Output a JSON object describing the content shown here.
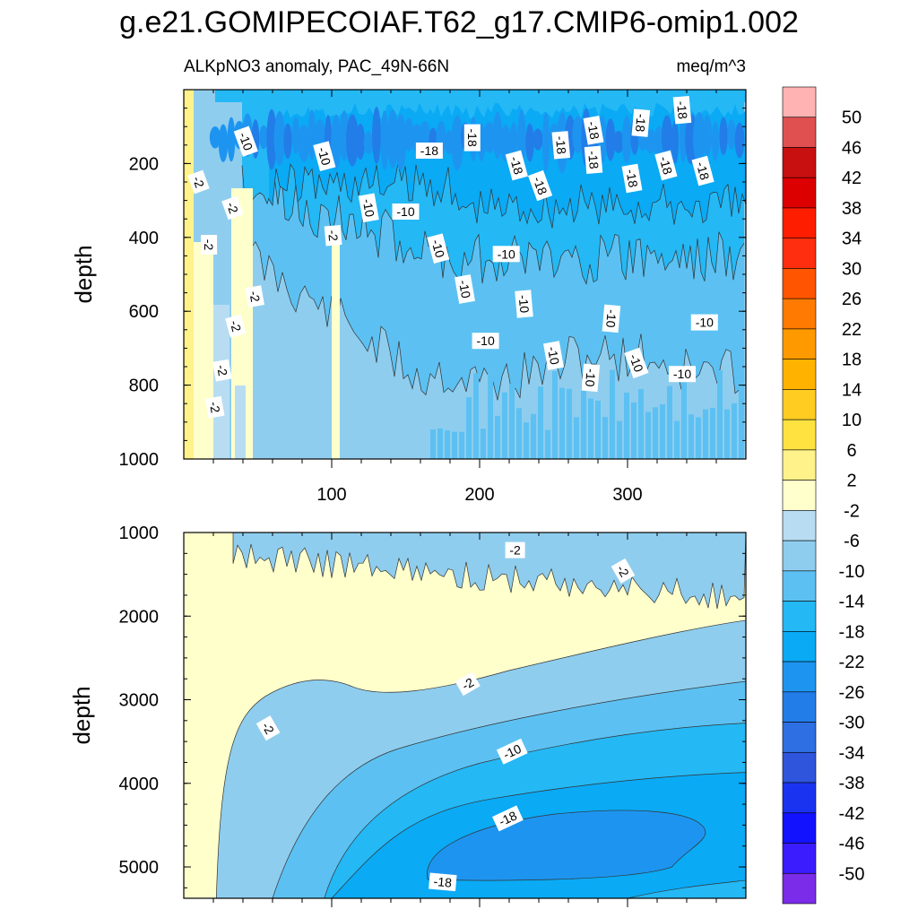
{
  "title": "g.e21.GOMIPECOIAF.T62_g17.CMIP6-omip1.002",
  "chart_data": {
    "type": "heatmap",
    "panels": [
      {
        "id": "upper",
        "left_label": "ALKpNO3 anomaly, PAC_49N-66N",
        "right_label": "meq/m^3",
        "ylabel": "depth",
        "y_range": [
          0,
          1000
        ],
        "y_ticks": [
          200,
          400,
          600,
          800,
          1000
        ],
        "x_range": [
          0,
          380
        ],
        "x_ticks": [
          100,
          200,
          300
        ],
        "contour_labels": [
          {
            "text": "-10",
            "x": 42,
            "y": 140,
            "rot": 70
          },
          {
            "text": "-10",
            "x": 95,
            "y": 180,
            "rot": 75
          },
          {
            "text": "-18",
            "x": 166,
            "y": 165,
            "rot": 0
          },
          {
            "text": "-18",
            "x": 195,
            "y": 130,
            "rot": 90
          },
          {
            "text": "-18",
            "x": 225,
            "y": 205,
            "rot": 75
          },
          {
            "text": "-18",
            "x": 255,
            "y": 150,
            "rot": 85
          },
          {
            "text": "-18",
            "x": 277,
            "y": 110,
            "rot": 80
          },
          {
            "text": "-18",
            "x": 309,
            "y": 90,
            "rot": 95
          },
          {
            "text": "-18",
            "x": 337,
            "y": 55,
            "rot": 85
          },
          {
            "text": "-18",
            "x": 277,
            "y": 190,
            "rot": 85
          },
          {
            "text": "-18",
            "x": 303,
            "y": 240,
            "rot": 80
          },
          {
            "text": "-18",
            "x": 326,
            "y": 205,
            "rot": 75
          },
          {
            "text": "-18",
            "x": 351,
            "y": 220,
            "rot": 75
          },
          {
            "text": "-18",
            "x": 241,
            "y": 260,
            "rot": 70
          },
          {
            "text": "-10",
            "x": 125,
            "y": 320,
            "rot": 80
          },
          {
            "text": "-10",
            "x": 150,
            "y": 330,
            "rot": 0
          },
          {
            "text": "-10",
            "x": 172,
            "y": 430,
            "rot": 75
          },
          {
            "text": "-10",
            "x": 218,
            "y": 445,
            "rot": 0
          },
          {
            "text": "-10",
            "x": 190,
            "y": 540,
            "rot": 80
          },
          {
            "text": "-10",
            "x": 230,
            "y": 580,
            "rot": 85
          },
          {
            "text": "-10",
            "x": 204,
            "y": 680,
            "rot": 0
          },
          {
            "text": "-10",
            "x": 250,
            "y": 720,
            "rot": 80
          },
          {
            "text": "-10",
            "x": 289,
            "y": 620,
            "rot": 95
          },
          {
            "text": "-10",
            "x": 275,
            "y": 780,
            "rot": 95
          },
          {
            "text": "-10",
            "x": 306,
            "y": 740,
            "rot": 70
          },
          {
            "text": "-10",
            "x": 337,
            "y": 770,
            "rot": 0
          },
          {
            "text": "-10",
            "x": 352,
            "y": 630,
            "rot": 0
          },
          {
            "text": "-2",
            "x": 10,
            "y": 250,
            "rot": 70
          },
          {
            "text": "-2",
            "x": 33,
            "y": 320,
            "rot": 70
          },
          {
            "text": "-2",
            "x": 17,
            "y": 420,
            "rot": 90
          },
          {
            "text": "-2",
            "x": 101,
            "y": 395,
            "rot": 85
          },
          {
            "text": "-2",
            "x": 48,
            "y": 560,
            "rot": 80
          },
          {
            "text": "-2",
            "x": 35,
            "y": 640,
            "rot": 75
          },
          {
            "text": "-2",
            "x": 26,
            "y": 760,
            "rot": 80
          },
          {
            "text": "-2",
            "x": 21,
            "y": 860,
            "rot": 80
          }
        ]
      },
      {
        "id": "lower",
        "ylabel": "depth",
        "y_range": [
          1000,
          5375
        ],
        "y_ticks": [
          1000,
          2000,
          3000,
          4000,
          5000
        ],
        "x_range": [
          0,
          380
        ],
        "contour_labels": [
          {
            "text": "-2",
            "x": 224,
            "y": 1210,
            "rot": 0
          },
          {
            "text": "-2",
            "x": 297,
            "y": 1460,
            "rot": 60
          },
          {
            "text": "-2",
            "x": 192,
            "y": 2810,
            "rot": -30
          },
          {
            "text": "-2",
            "x": 57,
            "y": 3340,
            "rot": 60
          },
          {
            "text": "-10",
            "x": 222,
            "y": 3620,
            "rot": -25
          },
          {
            "text": "-18",
            "x": 219,
            "y": 4420,
            "rot": -25
          },
          {
            "text": "-18",
            "x": 175,
            "y": 5180,
            "rot": 5
          }
        ]
      }
    ],
    "colorbar": {
      "levels": [
        "50",
        "46",
        "42",
        "38",
        "34",
        "30",
        "26",
        "22",
        "18",
        "14",
        "10",
        "6",
        "2",
        "-2",
        "-6",
        "-10",
        "-14",
        "-18",
        "-22",
        "-26",
        "-30",
        "-34",
        "-38",
        "-42",
        "-46",
        "-50"
      ],
      "colors": [
        "#ffb3b3",
        "#e05050",
        "#c81010",
        "#dc0000",
        "#ff1d00",
        "#ff2e0f",
        "#ff5500",
        "#ff7a00",
        "#ff9900",
        "#ffb300",
        "#ffcc22",
        "#ffe240",
        "#fff28a",
        "#ffffcc",
        "#b8ddf3",
        "#8fcdee",
        "#5cc1f2",
        "#24b8f5",
        "#0aaaf5",
        "#1d95f0",
        "#227de8",
        "#2e6fe3",
        "#2e55dc",
        "#1a33f0",
        "#1212ff",
        "#3a1cff",
        "#7a2ce8"
      ]
    }
  }
}
